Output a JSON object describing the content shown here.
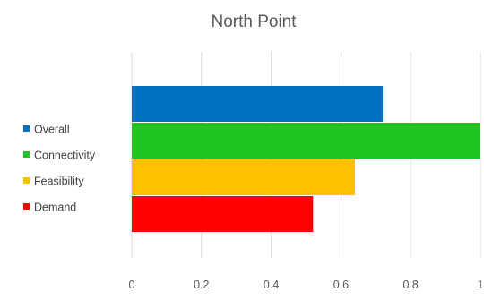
{
  "chart_data": {
    "type": "bar",
    "orientation": "horizontal",
    "title": "North Point",
    "xlabel": "",
    "ylabel": "",
    "categories": [
      "Overall",
      "Connectivity",
      "Feasibility",
      "Demand"
    ],
    "values": [
      0.72,
      1.0,
      0.64,
      0.52
    ],
    "colors": [
      "#0070C0",
      "#21C521",
      "#FFC000",
      "#FF0000"
    ],
    "xlim": [
      0,
      1
    ],
    "xticks": [
      0,
      0.2,
      0.4,
      0.6,
      0.8,
      1
    ],
    "tick_labels": [
      "0",
      "0.2",
      "0.4",
      "0.6",
      "0.8",
      "1"
    ],
    "grid": true,
    "legend": {
      "placement": "left",
      "entries": [
        "Overall",
        "Connectivity",
        "Feasibility",
        "Demand"
      ]
    },
    "grid_color": "#D9D9D9"
  }
}
